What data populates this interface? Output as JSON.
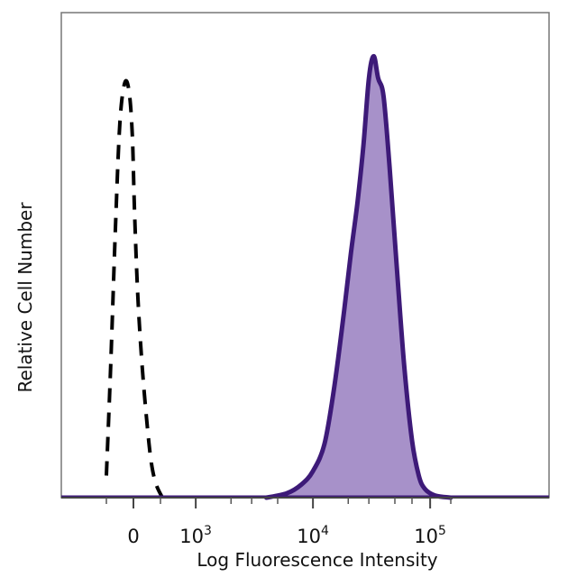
{
  "chart_data": {
    "type": "area",
    "xlabel": "Log Fluorescence Intensity",
    "ylabel": "Relative Cell Number",
    "x_scale": "biexponential",
    "x_range": [
      -1000,
      200000
    ],
    "y_range": [
      0,
      100
    ],
    "grid": false,
    "legend": "none",
    "x_ticks": [
      {
        "value": 0,
        "base": "0",
        "exp": ""
      },
      {
        "value": 1000,
        "base": "10",
        "exp": "3"
      },
      {
        "value": 10000,
        "base": "10",
        "exp": "4"
      },
      {
        "value": 100000,
        "base": "10",
        "exp": "5"
      }
    ],
    "x_minor_ticks": [
      -500,
      500,
      2000,
      3000,
      5000,
      20000,
      30000,
      50000,
      70000,
      150000
    ],
    "series": [
      {
        "style": "dashed",
        "color": "#000000",
        "fill": "none",
        "x": [
          -500,
          -420,
          -330,
          -250,
          -160,
          -80,
          -20,
          20,
          80,
          160,
          250,
          330,
          420,
          520
        ],
        "y": [
          5,
          30,
          62,
          85,
          94,
          92,
          82,
          65,
          46,
          30,
          17,
          8,
          3,
          0
        ]
      },
      {
        "style": "solid",
        "color": "#3d1a78",
        "fill": "#a791c9",
        "x": [
          4000,
          6000,
          8000,
          10000,
          12500,
          15000,
          18000,
          21000,
          24000,
          27000,
          30000,
          33000,
          36000,
          40000,
          45000,
          52000,
          60000,
          70000,
          80000,
          90000,
          110000,
          150000
        ],
        "y": [
          0,
          1,
          3,
          6,
          12,
          24,
          40,
          55,
          67,
          80,
          95,
          100,
          95,
          91,
          75,
          52,
          30,
          13,
          5,
          2,
          0.5,
          0
        ]
      }
    ]
  }
}
